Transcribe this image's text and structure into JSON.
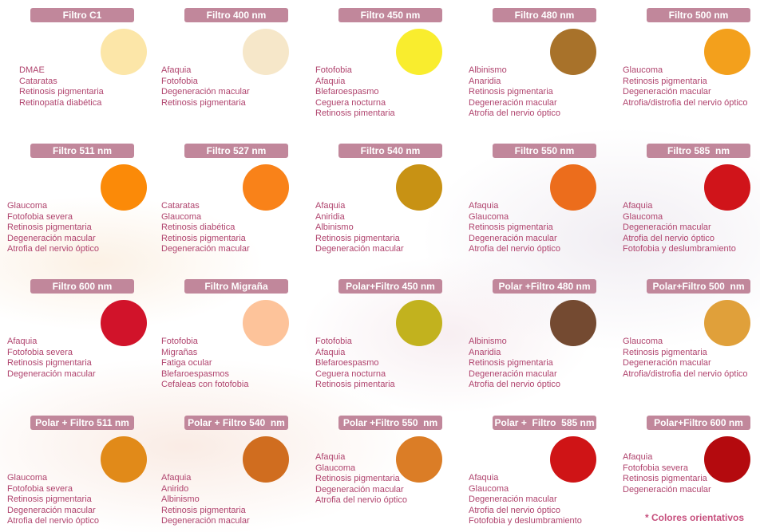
{
  "filters": [
    {
      "title": "Filtro C1",
      "color": "#fce6a8",
      "conditions": [
        "DMAE",
        "Cataratas",
        "Retinosis pigmentaria",
        "Retinopatía diabética"
      ]
    },
    {
      "title": "Filtro 400 nm",
      "color": "#f6e7c9",
      "conditions": [
        "Afaquia",
        "Fotofobia",
        "Degeneración macular",
        "Retinosis pigmentaria"
      ]
    },
    {
      "title": "Filtro 450 nm",
      "color": "#f9ed2e",
      "conditions": [
        "Fotofobia",
        "Afaquia",
        "Blefaroespasmo",
        "Ceguera nocturna",
        "Retinosis pimentaria"
      ]
    },
    {
      "title": "Filtro 480 nm",
      "color": "#a8722a",
      "conditions": [
        "Albinismo",
        "Anaridia",
        "Retinosis pigmentaria",
        "Degeneración macular",
        "Atrofia del nervio óptico"
      ]
    },
    {
      "title": "Filtro 500 nm",
      "color": "#f3a01c",
      "conditions": [
        "Glaucoma",
        "Retinosis pigmentaria",
        "Degeneración macular",
        "Atrofia/distrofia del nervio óptico"
      ]
    },
    {
      "title": "Filtro 511 nm",
      "color": "#fb8a08",
      "conditions": [
        "Glaucoma",
        "Fotofobia severa",
        "Retinosis pigmentaria",
        "Degeneración macular",
        "Atrofia del nervio óptico"
      ]
    },
    {
      "title": "Filtro 527 nm",
      "color": "#f98219",
      "conditions": [
        "Cataratas",
        "Glaucoma",
        "Retinosis diabética",
        "Retinosis pigmentaria",
        "Degeneración macular"
      ]
    },
    {
      "title": "Filtro 540 nm",
      "color": "#c89214",
      "conditions": [
        "Afaquia",
        "Aniridia",
        "Albinismo",
        "Retinosis pigmentaria",
        "Degeneración macular"
      ]
    },
    {
      "title": "Filtro 550 nm",
      "color": "#ec6d1c",
      "conditions": [
        "Afaquia",
        "Glaucoma",
        "Retinosis pigmentaria",
        "Degeneración macular",
        "Atrofia del nervio óptico"
      ]
    },
    {
      "title": "Filtro 585  nm",
      "color": "#d0141a",
      "conditions": [
        "Afaquia",
        "Glaucoma",
        "Degeneración macular",
        "Atrofia del nervio óptico",
        "Fotofobia y deslumbramiento"
      ]
    },
    {
      "title": "Filtro 600 nm",
      "color": "#d1132a",
      "conditions": [
        "Afaquia",
        "Fotofobia severa",
        "Retinosis pigmentaria",
        "Degeneración macular"
      ]
    },
    {
      "title": "Filtro Migraña",
      "color": "#fdc39a",
      "conditions": [
        "Fotofobia",
        "Migrañas",
        "Fatiga ocular",
        "Blefaroespasmos",
        "Cefaleas con fotofobia"
      ]
    },
    {
      "title": "Polar+Filtro 450 nm",
      "color": "#c2b21e",
      "conditions": [
        "Fotofobia",
        "Afaquia",
        "Blefaroespasmo",
        "Ceguera nocturna",
        "Retinosis pimentaria"
      ]
    },
    {
      "title": "Polar +Filtro 480 nm",
      "color": "#744a31",
      "conditions": [
        "Albinismo",
        "Anaridia",
        "Retinosis pigmentaria",
        "Degeneración macular",
        "Atrofia del nervio óptico"
      ]
    },
    {
      "title": "Polar+Filtro 500  nm",
      "color": "#e0a03a",
      "conditions": [
        "Glaucoma",
        "Retinosis pigmentaria",
        "Degeneración macular",
        "Atrofia/distrofia del nervio óptico"
      ]
    },
    {
      "title": "Polar + Filtro 511 nm",
      "color": "#e18a19",
      "conditions": [
        "Glaucoma",
        "Fotofobia severa",
        "Retinosis pigmentaria",
        "Degeneración macular",
        "Atrofia del nervio óptico"
      ]
    },
    {
      "title": "Polar + Filtro 540  nm",
      "color": "#d06d1f",
      "conditions": [
        "Afaquia",
        "Anirido",
        "Albinismo",
        "Retinosis pigmentaria",
        "Degeneración macular"
      ]
    },
    {
      "title": "Polar +Filtro 550  nm",
      "color": "#db7d26",
      "conditions": [
        "Afaquia",
        "Glaucoma",
        "Retinosis pigmentaria",
        "Degeneración macular",
        "Atrofia del nervio óptico"
      ]
    },
    {
      "title": "Polar +  Filtro  585 nm",
      "color": "#cf1416",
      "conditions": [
        "Afaquia",
        "Glaucoma",
        "Degeneración macular",
        "Atrofia del nervio óptico",
        "Fotofobia y deslumbramiento"
      ]
    },
    {
      "title": "Polar+Filtro 600 nm",
      "color": "#b40a0e",
      "conditions": [
        "Afaquia",
        "Fotofobia severa",
        "Retinosis pigmentaria",
        "Degeneración macular"
      ]
    }
  ],
  "footnote": "* Colores orientativos"
}
